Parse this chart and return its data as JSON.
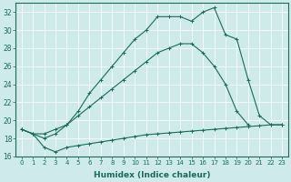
{
  "xlabel": "Humidex (Indice chaleur)",
  "background_color": "#ceeaea",
  "grid_color": "#b8d8d8",
  "line_color": "#1a6b5a",
  "xlim": [
    -0.5,
    23.5
  ],
  "ylim": [
    16,
    33
  ],
  "xticks": [
    0,
    1,
    2,
    3,
    4,
    5,
    6,
    7,
    8,
    9,
    10,
    11,
    12,
    13,
    14,
    15,
    16,
    17,
    18,
    19,
    20,
    21,
    22,
    23
  ],
  "yticks": [
    16,
    18,
    20,
    22,
    24,
    26,
    28,
    30,
    32
  ],
  "line1_x": [
    0,
    1,
    2,
    3,
    4,
    5,
    6,
    7,
    8,
    9,
    10,
    11,
    12,
    13,
    14,
    15,
    16,
    17,
    18,
    19,
    20,
    21,
    22,
    23
  ],
  "line1_y": [
    19.0,
    18.5,
    17.0,
    16.5,
    17.0,
    17.2,
    17.4,
    17.6,
    17.8,
    18.0,
    18.2,
    18.4,
    18.5,
    18.6,
    18.7,
    18.8,
    18.9,
    19.0,
    19.1,
    19.2,
    19.3,
    19.4,
    19.5,
    19.5
  ],
  "line2_x": [
    0,
    1,
    2,
    3,
    4,
    5,
    6,
    7,
    8,
    9,
    10,
    11,
    12,
    13,
    14,
    15,
    16,
    17,
    18,
    19,
    20
  ],
  "line2_y": [
    19.0,
    18.5,
    18.5,
    19.0,
    19.5,
    20.5,
    21.5,
    22.5,
    23.5,
    24.5,
    25.5,
    26.5,
    27.5,
    28.0,
    28.5,
    28.5,
    27.5,
    26.0,
    24.0,
    21.0,
    19.5
  ],
  "line3_x": [
    0,
    1,
    2,
    3,
    4,
    5,
    6,
    7,
    8,
    9,
    10,
    11,
    12,
    13,
    14,
    15,
    16,
    17,
    18,
    19,
    20,
    21,
    22,
    23
  ],
  "line3_y": [
    19.0,
    18.5,
    18.0,
    18.5,
    19.5,
    21.0,
    23.0,
    24.5,
    26.0,
    27.5,
    29.0,
    30.0,
    31.5,
    31.5,
    31.5,
    31.0,
    32.0,
    32.5,
    29.5,
    29.0,
    24.5,
    20.5,
    19.5,
    19.5
  ]
}
